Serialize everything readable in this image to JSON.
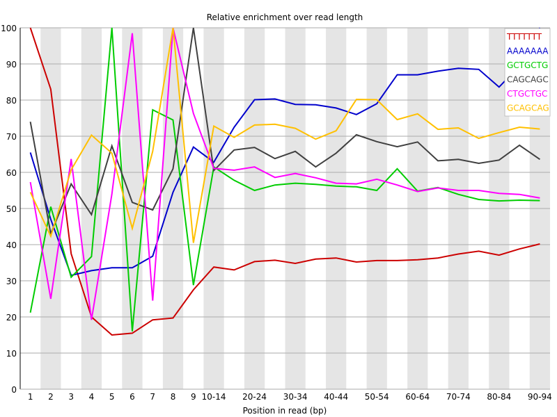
{
  "chart_data": {
    "type": "line",
    "title": "Relative enrichment over read length",
    "xlabel": "Position in read (bp)",
    "ylabel": "",
    "ylim": [
      0,
      100
    ],
    "yticks": [
      0,
      10,
      20,
      30,
      40,
      50,
      60,
      70,
      80,
      90,
      100
    ],
    "grid": true,
    "legend_position": "top-right",
    "categories": [
      "1",
      "2",
      "3",
      "4",
      "5",
      "6",
      "7",
      "8",
      "9",
      "10-14",
      "15-19",
      "20-24",
      "25-29",
      "30-34",
      "35-39",
      "40-44",
      "45-49",
      "50-54",
      "55-59",
      "60-64",
      "65-69",
      "70-74",
      "75-79",
      "80-84",
      "85-89",
      "90-94"
    ],
    "visible_x_tick_labels": [
      "1",
      "2",
      "3",
      "4",
      "5",
      "6",
      "7",
      "8",
      "9",
      "10-14",
      "20-24",
      "30-34",
      "40-44",
      "50-54",
      "60-64",
      "70-74",
      "80-84",
      "90-94"
    ],
    "series": [
      {
        "name": "TTTTTTT",
        "color": "#cc0000",
        "values": [
          100,
          83,
          37.5,
          20,
          15,
          15.5,
          19.2,
          19.7,
          27.5,
          33.8,
          33,
          35.3,
          35.7,
          34.8,
          36,
          36.3,
          35.2,
          35.6,
          35.6,
          35.8,
          36.3,
          37.4,
          38.2,
          37.1,
          38.8,
          40.2
        ]
      },
      {
        "name": "AAAAAAA",
        "color": "#0000cc",
        "values": [
          65.5,
          47,
          31.5,
          32.8,
          33.6,
          33.6,
          36.8,
          54.5,
          67,
          62.8,
          72.5,
          80.1,
          80.3,
          78.8,
          78.7,
          77.8,
          76,
          79,
          87,
          87,
          88,
          88.8,
          88.5,
          83.6,
          89.5,
          100
        ]
      },
      {
        "name": "GCTGCTG",
        "color": "#00cc00",
        "values": [
          21.2,
          50.5,
          31,
          36.7,
          100,
          16,
          77.3,
          74.5,
          28.8,
          61.5,
          57.8,
          55,
          56.5,
          57,
          56.7,
          56.2,
          56,
          55,
          61,
          54.8,
          55.8,
          53.9,
          52.5,
          52.1,
          52.3,
          52.2
        ]
      },
      {
        "name": "CAGCAGC",
        "color": "#404040",
        "values": [
          74,
          43,
          56.8,
          48.3,
          67.3,
          51.7,
          49.6,
          61,
          100,
          60.5,
          66.2,
          66.9,
          63.8,
          65.8,
          61.5,
          65.3,
          70.4,
          68.5,
          67.1,
          68.4,
          63.2,
          63.6,
          62.5,
          63.4,
          67.5,
          63.6
        ]
      },
      {
        "name": "CTGCTGC",
        "color": "#ff00ff",
        "values": [
          57.3,
          25,
          63.7,
          19.2,
          54,
          98.5,
          24.5,
          100,
          76.3,
          61.1,
          60.6,
          61.5,
          58.6,
          59.7,
          58.5,
          57,
          56.8,
          58.1,
          56.5,
          54.7,
          55.7,
          55,
          55,
          54.2,
          53.9,
          52.9
        ]
      },
      {
        "name": "GCAGCAG",
        "color": "#ffc000",
        "values": [
          54.5,
          42.3,
          60.7,
          70.3,
          65.3,
          44.5,
          65.8,
          100,
          40.5,
          72.8,
          69.7,
          73.1,
          73.3,
          72.2,
          69.2,
          71.5,
          80.2,
          80.1,
          74.6,
          76.2,
          71.9,
          72.3,
          69.4,
          71,
          72.5,
          72
        ]
      }
    ]
  },
  "colors": {
    "band": "#e5e5e5",
    "grid": "#aaaaaa",
    "axis": "#000000",
    "legend_border": "#c0c0c0"
  }
}
